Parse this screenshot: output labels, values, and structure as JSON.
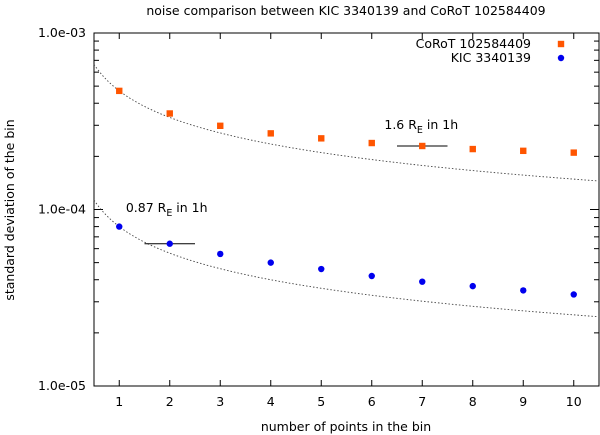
{
  "chart_data": {
    "type": "scatter",
    "title": "noise comparison between KIC 3340139 and CoRoT 102584409",
    "xlabel": "number of points in the bin",
    "ylabel": "standard deviation of the bin",
    "xlim": [
      0.5,
      10.5
    ],
    "ylim": [
      1e-05,
      0.001
    ],
    "yscale": "log",
    "grid": false,
    "legend_position": "top-right",
    "x_ticks": [
      1,
      2,
      3,
      4,
      5,
      6,
      7,
      8,
      9,
      10
    ],
    "x_tick_labels": [
      "1",
      "2",
      "3",
      "4",
      "5",
      "6",
      "7",
      "8",
      "9",
      "10"
    ],
    "y_ticks": [
      1e-05,
      0.0001,
      0.001
    ],
    "y_tick_labels": [
      "1.0e-05",
      "1.0e-04",
      "1.0e-03"
    ],
    "series": [
      {
        "name": "CoRoT 102584409",
        "color": "#ff5500",
        "marker": "square",
        "x": [
          1,
          2,
          3,
          4,
          5,
          6,
          7,
          8,
          9,
          10
        ],
        "y": [
          0.00047,
          0.00035,
          0.000298,
          0.00027,
          0.000253,
          0.000238,
          0.000229,
          0.00022,
          0.000215,
          0.00021
        ]
      },
      {
        "name": "KIC 3340139",
        "color": "#0000ee",
        "marker": "circle",
        "x": [
          1,
          2,
          3,
          4,
          5,
          6,
          7,
          8,
          9,
          10
        ],
        "y": [
          8e-05,
          6.4e-05,
          5.6e-05,
          5e-05,
          4.6e-05,
          4.2e-05,
          3.9e-05,
          3.68e-05,
          3.48e-05,
          3.3e-05
        ]
      }
    ],
    "reference_curves": [
      {
        "color": "#444444",
        "y_at_1": 0.00047
      },
      {
        "color": "#444444",
        "y_at_1": 8e-05
      }
    ],
    "annotations": [
      {
        "text": "1.6 R",
        "sub": "E",
        "suffix": " in 1h",
        "marker_x": [
          6.5,
          7.5
        ],
        "marker_y": 0.000229,
        "label_x": 6.25,
        "label_y": 0.000285
      },
      {
        "text": "0.87 R",
        "sub": "E",
        "suffix": " in 1h",
        "marker_x": [
          1.5,
          2.5
        ],
        "marker_y": 6.4e-05,
        "label_x": 1.13,
        "label_y": 9.65e-05
      }
    ]
  }
}
